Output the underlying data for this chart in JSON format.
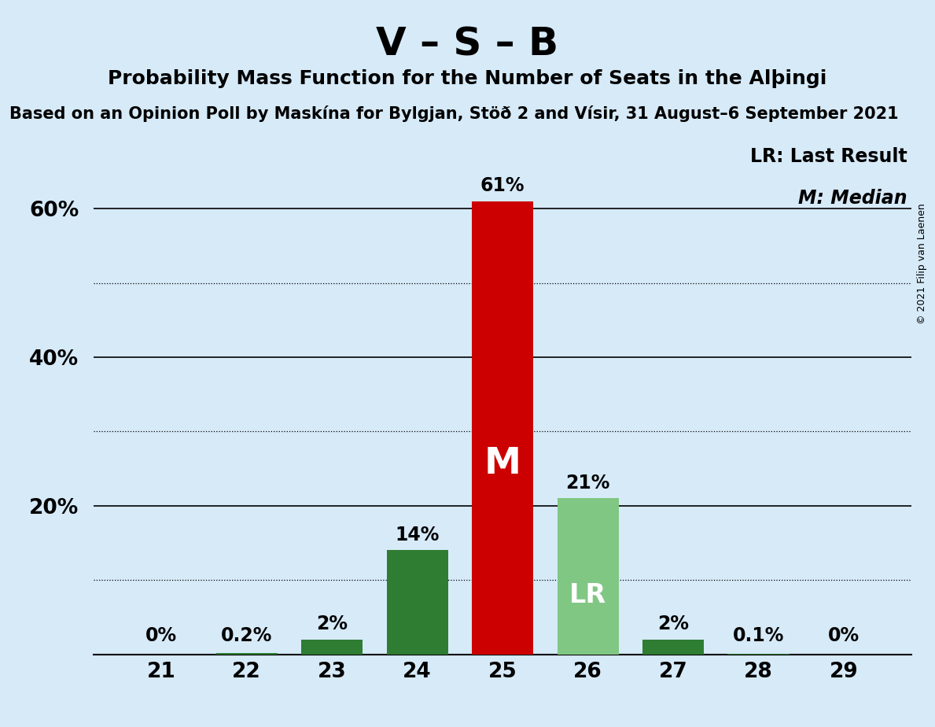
{
  "title": "V – S – B",
  "subtitle": "Probability Mass Function for the Number of Seats in the Alþingi",
  "source_line": "Based on an Opinion Poll by Maskína for Bylgjan, Stöð 2 and Vísir, 31 August–6 September 2021",
  "copyright": "© 2021 Filip van Laenen",
  "seats": [
    21,
    22,
    23,
    24,
    25,
    26,
    27,
    28,
    29
  ],
  "probabilities": [
    0.0,
    0.2,
    2.0,
    14.0,
    61.0,
    21.0,
    2.0,
    0.1,
    0.0
  ],
  "bar_labels": [
    "0%",
    "0.2%",
    "2%",
    "14%",
    "61%",
    "21%",
    "2%",
    "0.1%",
    "0%"
  ],
  "median_seat": 25,
  "last_result_seat": 26,
  "bar_color_default": "#2e7d32",
  "bar_color_median": "#cc0000",
  "bar_color_lr": "#81c784",
  "background_color": "#d6eaf8",
  "ylim": [
    0,
    70
  ],
  "yticks": [
    20,
    40,
    60
  ],
  "ytick_labels": [
    "20%",
    "40%",
    "60%"
  ],
  "legend_text_lr": "LR: Last Result",
  "legend_text_m": "M: Median",
  "label_inside_median": "M",
  "label_inside_lr": "LR",
  "title_fontsize": 36,
  "subtitle_fontsize": 18,
  "source_fontsize": 15,
  "bar_label_fontsize": 17,
  "tick_fontsize": 19,
  "legend_fontsize": 17,
  "copyright_fontsize": 9,
  "inside_label_median_fontsize": 34,
  "inside_label_lr_fontsize": 24
}
